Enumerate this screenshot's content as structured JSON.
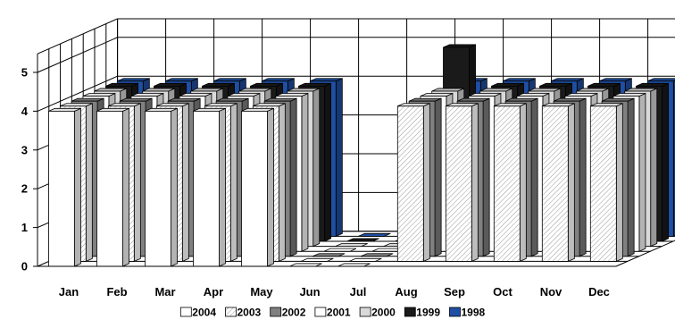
{
  "chart_data": {
    "type": "bar",
    "subtype": "3d-clustered-depth",
    "categories": [
      "Jan",
      "Feb",
      "Mar",
      "Apr",
      "May",
      "Jun",
      "Jul",
      "Aug",
      "Sep",
      "Oct",
      "Nov",
      "Dec"
    ],
    "ylim": [
      0,
      5
    ],
    "yticks": [
      "0",
      "1",
      "2",
      "3",
      "4",
      "5"
    ],
    "grid": true,
    "legend_position": "bottom",
    "series": [
      {
        "name": "2004",
        "color": "#ffffff",
        "pattern": "none",
        "values": [
          4,
          4,
          4,
          4,
          4,
          0,
          0,
          null,
          null,
          null,
          null,
          null
        ]
      },
      {
        "name": "2003",
        "color": "#ffffff",
        "pattern": "diagonal",
        "values": [
          4,
          4,
          4,
          4,
          4,
          0,
          0,
          4,
          4,
          4,
          4,
          4
        ]
      },
      {
        "name": "2002",
        "color": "#808080",
        "pattern": "none",
        "values": [
          4,
          4,
          4,
          4,
          4,
          0,
          0,
          4,
          4,
          4,
          4,
          4
        ]
      },
      {
        "name": "2001",
        "color": "#ffffff",
        "pattern": "none",
        "values": [
          4,
          4,
          4,
          4,
          4,
          0,
          0,
          4,
          4,
          4,
          4,
          4
        ]
      },
      {
        "name": "2000",
        "color": "#d9d9d9",
        "pattern": "none",
        "values": [
          4,
          4,
          4,
          4,
          4,
          0,
          0,
          4,
          4,
          4,
          4,
          4
        ]
      },
      {
        "name": "1999",
        "color": "#1a1a1a",
        "pattern": "none",
        "values": [
          4,
          4,
          4,
          4,
          4,
          0,
          0,
          5,
          4,
          4,
          4,
          4
        ]
      },
      {
        "name": "1998",
        "color": "#1f4fa3",
        "pattern": "none",
        "values": [
          4,
          4,
          4,
          4,
          4,
          0,
          0,
          4,
          4,
          4,
          4,
          4
        ]
      }
    ]
  }
}
